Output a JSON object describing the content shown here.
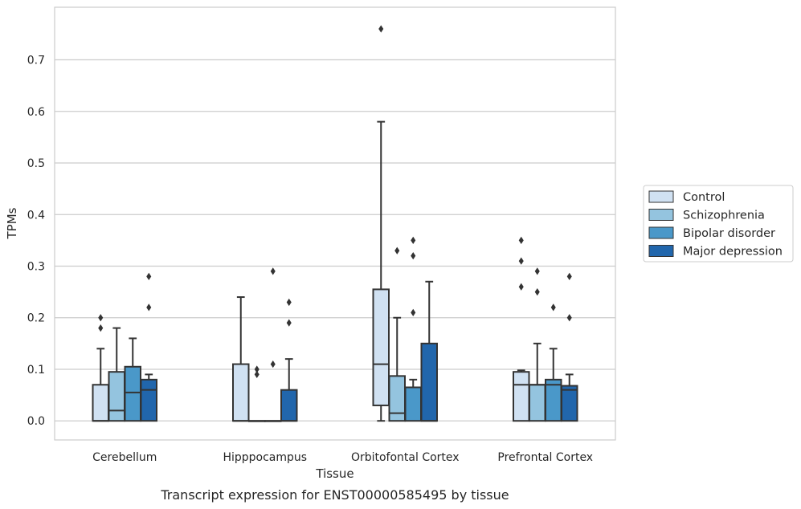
{
  "caption": "Transcript expression for ENST00000585495 by tissue",
  "chart_data": {
    "type": "box",
    "xlabel": "Tissue",
    "ylabel": "TPMs",
    "ylim": [
      -0.037,
      0.802
    ],
    "yticks": [
      0.0,
      0.1,
      0.2,
      0.3,
      0.4,
      0.5,
      0.6,
      0.7
    ],
    "ytick_labels": [
      "0.0",
      "0.1",
      "0.2",
      "0.3",
      "0.4",
      "0.5",
      "0.6",
      "0.7"
    ],
    "grid": "horizontal",
    "legend_position": "right-outside",
    "categories": [
      "Cerebellum",
      "Hipppocampus",
      "Orbitofontal Cortex",
      "Prefrontal Cortex"
    ],
    "series": [
      {
        "name": "Control",
        "color": "#d0e1f2",
        "boxes": [
          {
            "whislo": 0.0,
            "q1": 0.0,
            "med": 0.0,
            "q3": 0.07,
            "whishi": 0.14,
            "fliers": [
              0.18,
              0.2
            ]
          },
          {
            "whislo": 0.0,
            "q1": 0.0,
            "med": 0.0,
            "q3": 0.11,
            "whishi": 0.24,
            "fliers": []
          },
          {
            "whislo": 0.0,
            "q1": 0.03,
            "med": 0.11,
            "q3": 0.255,
            "whishi": 0.58,
            "fliers": [
              0.76
            ]
          },
          {
            "whislo": 0.0,
            "q1": 0.0,
            "med": 0.07,
            "q3": 0.095,
            "whishi": 0.098,
            "fliers": [
              0.26,
              0.31,
              0.35
            ]
          }
        ]
      },
      {
        "name": "Schizophrenia",
        "color": "#94c4df",
        "boxes": [
          {
            "whislo": 0.0,
            "q1": 0.0,
            "med": 0.02,
            "q3": 0.095,
            "whishi": 0.18,
            "fliers": []
          },
          {
            "whislo": 0.0,
            "q1": 0.0,
            "med": 0.0,
            "q3": 0.0,
            "whishi": 0.0,
            "fliers": [
              0.09,
              0.1
            ]
          },
          {
            "whislo": 0.0,
            "q1": 0.0,
            "med": 0.015,
            "q3": 0.087,
            "whishi": 0.2,
            "fliers": [
              0.33
            ]
          },
          {
            "whislo": 0.0,
            "q1": 0.0,
            "med": 0.07,
            "q3": 0.07,
            "whishi": 0.15,
            "fliers": [
              0.25,
              0.29
            ]
          }
        ]
      },
      {
        "name": "Bipolar disorder",
        "color": "#4a98c9",
        "boxes": [
          {
            "whislo": 0.0,
            "q1": 0.0,
            "med": 0.055,
            "q3": 0.105,
            "whishi": 0.16,
            "fliers": []
          },
          {
            "whislo": 0.0,
            "q1": 0.0,
            "med": 0.0,
            "q3": 0.0,
            "whishi": 0.0,
            "fliers": [
              0.11,
              0.29
            ]
          },
          {
            "whislo": 0.0,
            "q1": 0.0,
            "med": 0.065,
            "q3": 0.065,
            "whishi": 0.08,
            "fliers": [
              0.21,
              0.32,
              0.35
            ]
          },
          {
            "whislo": 0.0,
            "q1": 0.0,
            "med": 0.07,
            "q3": 0.08,
            "whishi": 0.14,
            "fliers": [
              0.22
            ]
          }
        ]
      },
      {
        "name": "Major depression",
        "color": "#2166ac",
        "boxes": [
          {
            "whislo": 0.0,
            "q1": 0.0,
            "med": 0.06,
            "q3": 0.08,
            "whishi": 0.09,
            "fliers": [
              0.22,
              0.28
            ]
          },
          {
            "whislo": 0.0,
            "q1": 0.0,
            "med": 0.0,
            "q3": 0.06,
            "whishi": 0.12,
            "fliers": [
              0.19,
              0.23
            ]
          },
          {
            "whislo": 0.0,
            "q1": 0.0,
            "med": 0.0,
            "q3": 0.15,
            "whishi": 0.27,
            "fliers": []
          },
          {
            "whislo": 0.0,
            "q1": 0.0,
            "med": 0.06,
            "q3": 0.068,
            "whishi": 0.09,
            "fliers": [
              0.2,
              0.28
            ]
          }
        ]
      }
    ],
    "colors": {
      "grid": "#cccccc",
      "frame": "#cccccc",
      "stroke": "#333333",
      "text": "#262626"
    }
  }
}
